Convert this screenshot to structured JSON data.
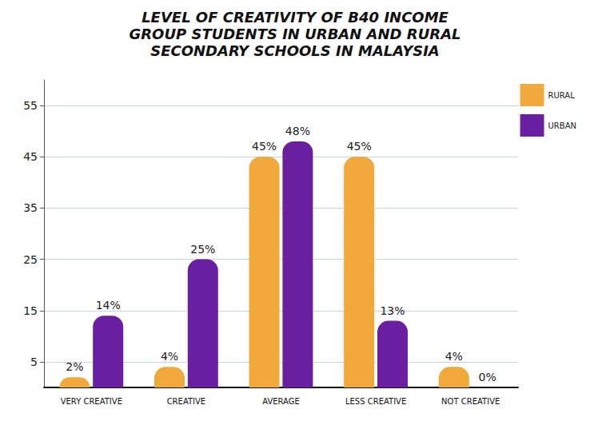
{
  "chart_data": {
    "type": "bar",
    "title": "LEVEL OF CREATIVITY OF B40 INCOME GROUP STUDENTS IN URBAN AND RURAL SECONDARY SCHOOLS IN MALAYSIA",
    "categories": [
      "VERY CREATIVE",
      "CREATIVE",
      "AVERAGE",
      "LESS CREATIVE",
      "NOT CREATIVE"
    ],
    "series": [
      {
        "name": "RURAL",
        "color": "#f2a93b",
        "values": [
          2,
          4,
          45,
          45,
          4
        ],
        "value_labels": [
          "2%",
          "4%",
          "45%",
          "45%",
          "4%"
        ]
      },
      {
        "name": "URBAN",
        "color": "#6a1fa0",
        "values": [
          14,
          25,
          48,
          13,
          0
        ],
        "value_labels": [
          "14%",
          "25%",
          "48%",
          "13%",
          "0%"
        ]
      }
    ],
    "ylim": [
      0,
      60
    ],
    "yticks": [
      5,
      15,
      25,
      35,
      45,
      55
    ],
    "grid": true,
    "legend": "upper right",
    "data_labels": true
  }
}
